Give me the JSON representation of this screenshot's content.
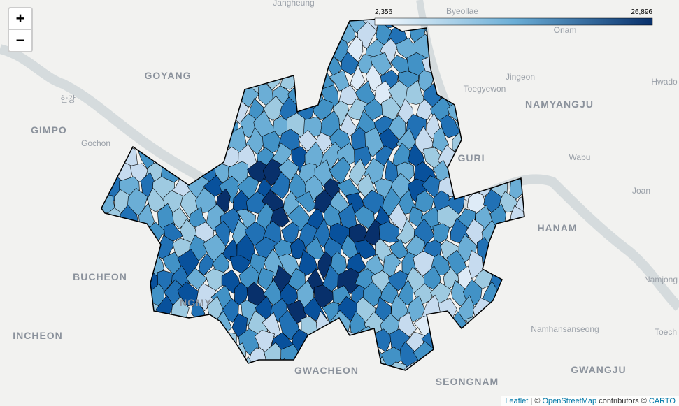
{
  "zoom": {
    "in": "+",
    "out": "−"
  },
  "legend": {
    "min_label": "2,356",
    "max_label": "26,896"
  },
  "places": [
    "Jangheung",
    "Byeollae",
    "Onam",
    "GOYANG",
    "Jingeon",
    "Toegyewon",
    "Hwado",
    "NAMYANGJU",
    "GIMPO",
    "Gochon",
    "GURI",
    "Wabu",
    "Joan",
    "HANAM",
    "BUCHEON",
    "Namjong",
    "INCHEON",
    "Namhansanseong",
    "Toech",
    "GWACHEON",
    "SEONGNAM",
    "GWANGJU",
    "한강",
    "NGMY"
  ],
  "attribution": {
    "leaflet": "Leaflet",
    "sep": " | © ",
    "osm": "OpenStreetMap",
    "rest": " contributors © ",
    "carto": "CARTO"
  }
}
